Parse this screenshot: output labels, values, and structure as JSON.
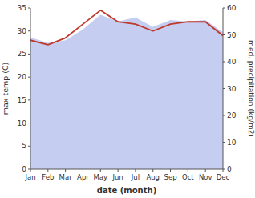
{
  "chart_data": {
    "type": "line",
    "x_label": "date (month)",
    "y_label": "max temp (C)",
    "y2_label": "med. precipitation (kg/m2)",
    "categories": [
      "Jan",
      "Feb",
      "Mar",
      "Apr",
      "May",
      "Jun",
      "Jul",
      "Aug",
      "Sep",
      "Oct",
      "Nov",
      "Dec"
    ],
    "series": [
      {
        "type": "area",
        "axis": "y2",
        "color": "#c5cef0",
        "values": [
          49.0,
          47.0,
          48.0,
          52.0,
          57.5,
          55.0,
          56.5,
          53.0,
          55.5,
          55.0,
          55.5,
          51.0
        ]
      },
      {
        "type": "line",
        "color": "#c0392b",
        "values": [
          28.0,
          27.0,
          28.5,
          31.5,
          34.5,
          32.0,
          31.5,
          30.0,
          31.5,
          32.0,
          32.0,
          29.0
        ]
      }
    ],
    "ylim": [
      0,
      35
    ],
    "yticks": [
      0,
      5,
      10,
      15,
      20,
      25,
      30,
      35
    ],
    "y2lim": [
      0,
      60
    ],
    "y2ticks": [
      0,
      10,
      20,
      30,
      40,
      50,
      60
    ],
    "grid": false
  }
}
